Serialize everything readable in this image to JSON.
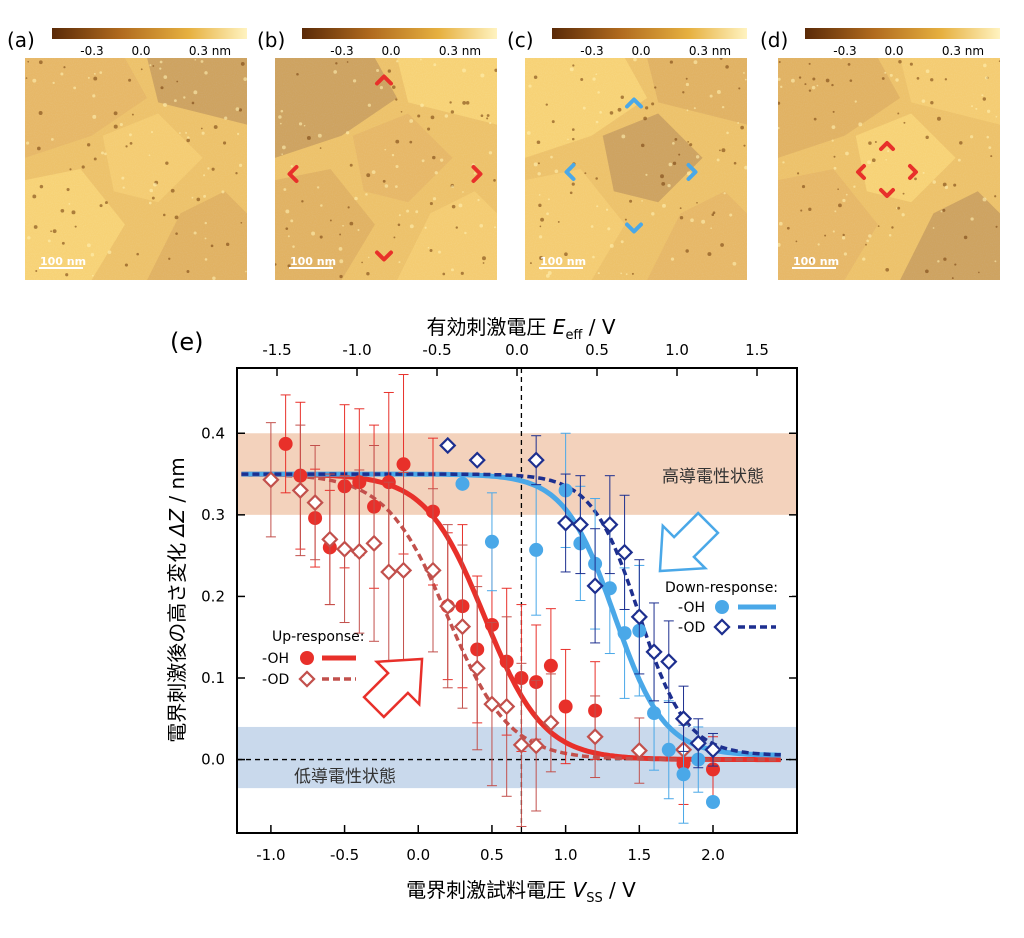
{
  "panels": [
    {
      "label": "(a)",
      "scale": "100 nm",
      "markers": "none"
    },
    {
      "label": "(b)",
      "scale": "100 nm",
      "markers": "large-red"
    },
    {
      "label": "(c)",
      "scale": "100 nm",
      "markers": "blue"
    },
    {
      "label": "(d)",
      "scale": "100 nm",
      "markers": "small-red"
    }
  ],
  "colorbar": {
    "ticks": [
      "-0.3",
      "0.0",
      "0.3 nm"
    ]
  },
  "colors": {
    "oh_red": "#e8302a",
    "od_red": "#c2504c",
    "oh_blue": "#4aa8e8",
    "od_blue": "#1d2f8f",
    "high_band": "#f3d2bc",
    "low_band": "#c9d9ec",
    "afm_dark": "#6e3f12",
    "afm_light": "#f5cf5a"
  },
  "chart_data": {
    "type": "scatter",
    "panel_label": "(e)",
    "top_axis": {
      "label": "有効刺激電圧",
      "symbol": "E",
      "subscript": "eff",
      "unit": "/  V",
      "ticks": [
        "-1.5",
        "-1.0",
        "-0.5",
        "0.0",
        "0.5",
        "1.0",
        "1.5"
      ],
      "range": [
        -1.75,
        1.75
      ]
    },
    "x_axis": {
      "label": "電界刺激試料電圧",
      "symbol": "V",
      "subscript": "SS",
      "unit": "/  V",
      "ticks": [
        "-1.0",
        "-0.5",
        "0.0",
        "0.5",
        "1.0",
        "1.5",
        "2.0"
      ],
      "range": [
        -1.23,
        2.57
      ]
    },
    "y_axis": {
      "label": "電界刺激後の高さ変化",
      "symbol": "ΔZ",
      "unit": "/ nm",
      "ticks": [
        "0.0",
        "0.1",
        "0.2",
        "0.3",
        "0.4"
      ],
      "range": [
        -0.09,
        0.48
      ]
    },
    "bands": [
      {
        "label": "高導電性状態",
        "y": [
          0.3,
          0.4
        ]
      },
      {
        "label": "低導電性状態",
        "y": [
          -0.035,
          0.04
        ]
      }
    ],
    "dashed_x": 0.7,
    "dashed_y": 0.0,
    "legend_up": {
      "title": "Up-response:",
      "oh": "-OH",
      "od": "-OD"
    },
    "legend_down": {
      "title": "Down-response:",
      "oh": "-OH",
      "od": "-OD"
    },
    "series": [
      {
        "name": "Up-response -OH",
        "marker": "circle",
        "color": "#e8302a",
        "x": [
          -0.9,
          -0.8,
          -0.7,
          -0.6,
          -0.5,
          -0.4,
          -0.3,
          -0.2,
          -0.1,
          0.1,
          0.2,
          0.3,
          0.4,
          0.5,
          0.6,
          0.7,
          0.8,
          0.9,
          1.0,
          1.2,
          1.8,
          2.0
        ],
        "y": [
          0.387,
          0.348,
          0.296,
          0.26,
          0.335,
          0.34,
          0.31,
          0.34,
          0.362,
          0.304,
          0.188,
          0.188,
          0.135,
          0.165,
          0.12,
          0.1,
          0.095,
          0.115,
          0.065,
          0.06,
          -0.005,
          -0.012
        ],
        "err": [
          0.06,
          0.09,
          0.06,
          0.07,
          0.1,
          0.09,
          0.1,
          0.11,
          0.11,
          0.09,
          0.09,
          0.1,
          0.09,
          0.1,
          0.09,
          0.09,
          0.07,
          0.07,
          0.07,
          0.06,
          0.05,
          0.04
        ],
        "fit": {
          "lower": 0.0,
          "upper": 0.35,
          "x0": 0.45,
          "w": 0.2
        }
      },
      {
        "name": "Up-response -OD",
        "marker": "diamond",
        "color": "#c2504c",
        "x": [
          -1.0,
          -0.8,
          -0.7,
          -0.6,
          -0.5,
          -0.4,
          -0.3,
          -0.2,
          -0.1,
          0.1,
          0.2,
          0.3,
          0.4,
          0.5,
          0.6,
          0.7,
          0.8,
          0.9,
          1.2,
          1.5,
          1.8
        ],
        "y": [
          0.343,
          0.33,
          0.315,
          0.27,
          0.258,
          0.255,
          0.265,
          0.23,
          0.232,
          0.232,
          0.188,
          0.163,
          0.112,
          0.068,
          0.065,
          0.018,
          0.017,
          0.045,
          0.028,
          0.011,
          0.012
        ],
        "err": [
          0.07,
          0.08,
          0.07,
          0.08,
          0.09,
          0.1,
          0.12,
          0.11,
          0.12,
          0.1,
          0.1,
          0.1,
          0.1,
          0.1,
          0.11,
          0.1,
          0.08,
          0.06,
          0.05,
          0.04,
          0.03
        ],
        "fit": {
          "lower": 0.0,
          "upper": 0.35,
          "x0": 0.2,
          "w": 0.21
        }
      },
      {
        "name": "Down-response -OH",
        "marker": "circle",
        "color": "#4aa8e8",
        "x": [
          0.3,
          0.5,
          0.8,
          1.0,
          1.1,
          1.2,
          1.3,
          1.4,
          1.5,
          1.6,
          1.7,
          1.8,
          1.9,
          2.0
        ],
        "y": [
          0.338,
          0.267,
          0.257,
          0.33,
          0.265,
          0.24,
          0.21,
          0.155,
          0.158,
          0.057,
          0.012,
          -0.018,
          0.0,
          -0.052
        ],
        "err": [
          0.0,
          0.06,
          0.08,
          0.07,
          0.07,
          0.08,
          0.08,
          0.08,
          0.08,
          0.07,
          0.06,
          0.06,
          0.04,
          0.0
        ],
        "fit": {
          "lower": 0.005,
          "upper": 0.35,
          "x0": 1.33,
          "w": 0.17
        }
      },
      {
        "name": "Down-response -OD",
        "marker": "diamond",
        "color": "#1d2f8f",
        "x": [
          0.2,
          0.4,
          0.8,
          1.0,
          1.1,
          1.2,
          1.3,
          1.4,
          1.5,
          1.6,
          1.7,
          1.8,
          1.9,
          2.0
        ],
        "y": [
          0.385,
          0.367,
          0.367,
          0.29,
          0.288,
          0.213,
          0.288,
          0.254,
          0.175,
          0.132,
          0.12,
          0.05,
          0.02,
          0.012
        ],
        "err": [
          0.0,
          0.0,
          0.03,
          0.06,
          0.06,
          0.07,
          0.06,
          0.07,
          0.07,
          0.06,
          0.05,
          0.04,
          0.03,
          0.02
        ],
        "fit": {
          "lower": 0.005,
          "upper": 0.35,
          "x0": 1.5,
          "w": 0.16
        }
      }
    ]
  }
}
